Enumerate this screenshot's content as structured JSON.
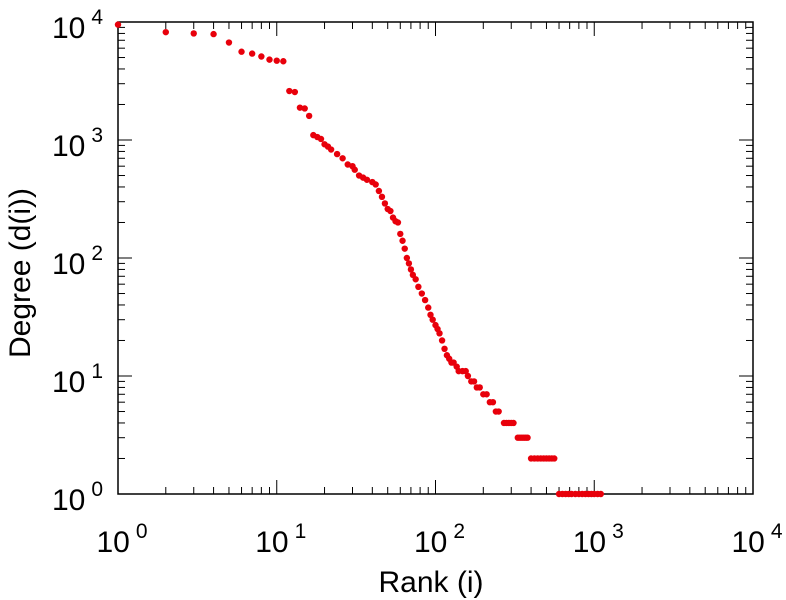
{
  "chart_data": {
    "type": "scatter",
    "title": "",
    "xlabel": "Rank (i)",
    "ylabel": "Degree (d(i))",
    "x_scale": "log",
    "y_scale": "log",
    "xlim": [
      1,
      10000
    ],
    "ylim": [
      1,
      10000
    ],
    "grid": false,
    "legend": "none",
    "x_ticks": [
      {
        "base": "10",
        "exp": "0",
        "value": 1
      },
      {
        "base": "10",
        "exp": "1",
        "value": 10
      },
      {
        "base": "10",
        "exp": "2",
        "value": 100
      },
      {
        "base": "10",
        "exp": "3",
        "value": 1000
      },
      {
        "base": "10",
        "exp": "4",
        "value": 10000
      }
    ],
    "y_ticks": [
      {
        "base": "10",
        "exp": "0",
        "value": 1
      },
      {
        "base": "10",
        "exp": "1",
        "value": 10
      },
      {
        "base": "10",
        "exp": "2",
        "value": 100
      },
      {
        "base": "10",
        "exp": "3",
        "value": 1000
      },
      {
        "base": "10",
        "exp": "4",
        "value": 10000
      }
    ],
    "series": [
      {
        "color": "#e8000b",
        "points": [
          [
            1,
            9500
          ],
          [
            2,
            8200
          ],
          [
            3,
            8000
          ],
          [
            4,
            7900
          ],
          [
            5,
            6700
          ],
          [
            6,
            5600
          ],
          [
            7,
            5400
          ],
          [
            8,
            5100
          ],
          [
            9,
            4800
          ],
          [
            10,
            4700
          ],
          [
            11,
            4650
          ],
          [
            12,
            2600
          ],
          [
            13,
            2550
          ],
          [
            14,
            1880
          ],
          [
            15,
            1850
          ],
          [
            16,
            1600
          ],
          [
            17,
            1100
          ],
          [
            18,
            1060
          ],
          [
            19,
            1020
          ],
          [
            20,
            920
          ],
          [
            21,
            880
          ],
          [
            22,
            830
          ],
          [
            24,
            760
          ],
          [
            26,
            700
          ],
          [
            28,
            620
          ],
          [
            30,
            600
          ],
          [
            31,
            560
          ],
          [
            33,
            500
          ],
          [
            35,
            480
          ],
          [
            37,
            460
          ],
          [
            40,
            440
          ],
          [
            42,
            420
          ],
          [
            44,
            370
          ],
          [
            46,
            330
          ],
          [
            48,
            290
          ],
          [
            50,
            260
          ],
          [
            52,
            250
          ],
          [
            54,
            220
          ],
          [
            56,
            205
          ],
          [
            58,
            200
          ],
          [
            60,
            160
          ],
          [
            62,
            140
          ],
          [
            64,
            120
          ],
          [
            66,
            100
          ],
          [
            68,
            90
          ],
          [
            70,
            80
          ],
          [
            72,
            72
          ],
          [
            75,
            66
          ],
          [
            78,
            57
          ],
          [
            82,
            50
          ],
          [
            86,
            44
          ],
          [
            90,
            38
          ],
          [
            93,
            33
          ],
          [
            96,
            30
          ],
          [
            100,
            27
          ],
          [
            103,
            25
          ],
          [
            106,
            23
          ],
          [
            110,
            20
          ],
          [
            114,
            17
          ],
          [
            118,
            15
          ],
          [
            122,
            14
          ],
          [
            126,
            13
          ],
          [
            130,
            13
          ],
          [
            136,
            12
          ],
          [
            140,
            11
          ],
          [
            148,
            11
          ],
          [
            155,
            11
          ],
          [
            160,
            10
          ],
          [
            168,
            9
          ],
          [
            175,
            9
          ],
          [
            182,
            8
          ],
          [
            190,
            8
          ],
          [
            200,
            7
          ],
          [
            210,
            7
          ],
          [
            220,
            6
          ],
          [
            230,
            6
          ],
          [
            240,
            5
          ],
          [
            250,
            5
          ],
          [
            270,
            4
          ],
          [
            280,
            4
          ],
          [
            290,
            4
          ],
          [
            300,
            4
          ],
          [
            310,
            4
          ],
          [
            330,
            3
          ],
          [
            340,
            3
          ],
          [
            350,
            3
          ],
          [
            360,
            3
          ],
          [
            370,
            3
          ],
          [
            380,
            3
          ],
          [
            400,
            2
          ],
          [
            420,
            2
          ],
          [
            440,
            2
          ],
          [
            460,
            2
          ],
          [
            480,
            2
          ],
          [
            500,
            2
          ],
          [
            520,
            2
          ],
          [
            540,
            2
          ],
          [
            560,
            2
          ],
          [
            600,
            1
          ],
          [
            630,
            1
          ],
          [
            660,
            1
          ],
          [
            690,
            1
          ],
          [
            720,
            1
          ],
          [
            760,
            1
          ],
          [
            800,
            1
          ],
          [
            840,
            1
          ],
          [
            880,
            1
          ],
          [
            920,
            1
          ],
          [
            960,
            1
          ],
          [
            1000,
            1
          ],
          [
            1050,
            1
          ],
          [
            1100,
            1
          ]
        ]
      }
    ]
  }
}
